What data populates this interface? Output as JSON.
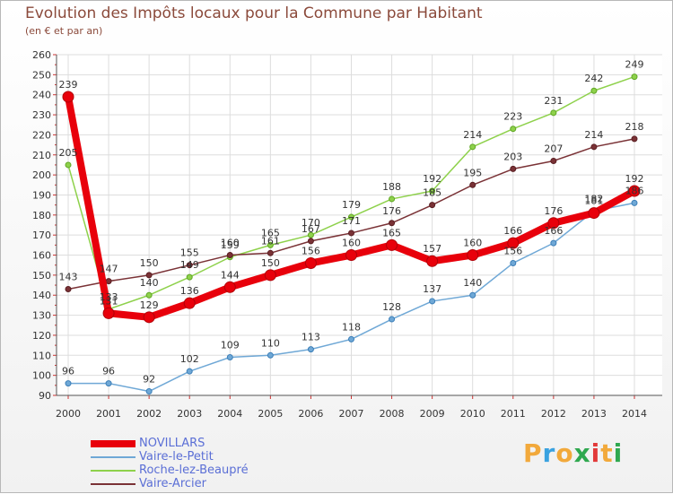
{
  "title": "Evolution des Impôts locaux pour la Commune par Habitant",
  "subtitle": "(en € et par an)",
  "brand": {
    "letters": [
      "P",
      "r",
      "o",
      "x",
      "i",
      "t",
      "i"
    ],
    "letter_colors": [
      "#f2a93b",
      "#3aa2e0",
      "#f2a93b",
      "#2fa84f",
      "#e23a3a",
      "#f2a93b",
      "#2fa84f"
    ]
  },
  "chart_data": {
    "type": "line",
    "title": "Evolution des Impôts locaux pour la Commune par Habitant",
    "ylabel": "(en € et par an)",
    "xlabel": "",
    "ylim": [
      90,
      260
    ],
    "yticks": [
      90,
      100,
      110,
      120,
      130,
      140,
      150,
      160,
      170,
      180,
      190,
      200,
      210,
      220,
      230,
      240,
      250,
      260
    ],
    "grid": true,
    "legend": "bottom",
    "categories": [
      "2000",
      "2001",
      "2002",
      "2003",
      "2004",
      "2005",
      "2006",
      "2007",
      "2008",
      "2009",
      "2010",
      "2011",
      "2012",
      "2013",
      "2014"
    ],
    "series": [
      {
        "name": "NOVILLARS",
        "color": "#e8000b",
        "values": [
          239,
          131,
          129,
          136,
          144,
          150,
          156,
          160,
          165,
          157,
          160,
          166,
          176,
          181,
          192
        ],
        "labels": [
          "239",
          "131",
          "129",
          "136",
          "144",
          "150",
          "156",
          "160",
          "165",
          "157",
          "160",
          "166",
          "176",
          "181",
          "192"
        ]
      },
      {
        "name": "Vaire-le-Petit",
        "color": "#6fa8d6",
        "values": [
          96,
          96,
          92,
          102,
          109,
          110,
          113,
          118,
          128,
          137,
          140,
          156,
          166,
          182,
          186
        ],
        "labels": [
          "96",
          "96",
          "92",
          "102",
          "109",
          "110",
          "113",
          "118",
          "128",
          "137",
          "140",
          "156",
          "166",
          "182",
          "186"
        ]
      },
      {
        "name": "Roche-lez-Beaupré",
        "color": "#8ed14b",
        "values": [
          205,
          133,
          140,
          149,
          159,
          165,
          170,
          179,
          188,
          192,
          214,
          223,
          231,
          242,
          249
        ],
        "labels": [
          "205",
          "133",
          "140",
          "149",
          "159",
          "165",
          "170",
          "179",
          "188",
          "192",
          "214",
          "223",
          "231",
          "242",
          "249"
        ]
      },
      {
        "name": "Vaire-Arcier",
        "color": "#7a3236",
        "values": [
          143,
          147,
          150,
          155,
          160,
          161,
          167,
          171,
          176,
          185,
          195,
          203,
          207,
          214,
          218
        ],
        "labels": [
          "143",
          "147",
          "150",
          "155",
          "160",
          "161",
          "167",
          "171",
          "176",
          "185",
          "195",
          "203",
          "207",
          "214",
          "218"
        ]
      }
    ]
  }
}
